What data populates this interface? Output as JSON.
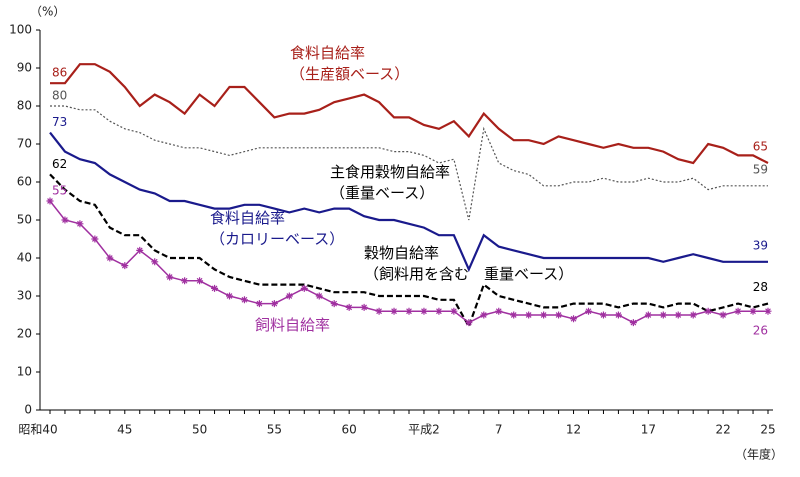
{
  "chart_data": {
    "type": "line",
    "y_unit_label": "（%）",
    "x_unit_label": "（年度）",
    "categories": [
      "昭和40",
      null,
      null,
      null,
      null,
      "45",
      null,
      null,
      null,
      null,
      "50",
      null,
      null,
      null,
      null,
      "55",
      null,
      null,
      null,
      null,
      "60",
      null,
      null,
      null,
      null,
      "平成2",
      null,
      null,
      null,
      null,
      "7",
      null,
      null,
      null,
      null,
      "12",
      null,
      null,
      null,
      null,
      "17",
      null,
      null,
      null,
      null,
      "22",
      null,
      null,
      "25"
    ],
    "ylim": [
      0,
      100
    ],
    "yticks": [
      0,
      10,
      20,
      30,
      40,
      50,
      60,
      70,
      80,
      90,
      100
    ],
    "series": [
      {
        "name": "食料自給率\n（生産額ベース）",
        "color": "#a8201a",
        "style": "solid",
        "values": [
          86,
          86,
          91,
          91,
          89,
          85,
          80,
          83,
          81,
          78,
          83,
          80,
          85,
          85,
          81,
          77,
          78,
          78,
          79,
          81,
          82,
          83,
          81,
          77,
          77,
          75,
          74,
          76,
          72,
          78,
          74,
          71,
          71,
          70,
          72,
          71,
          70,
          69,
          70,
          69,
          69,
          68,
          66,
          65,
          70,
          69,
          67,
          67,
          65
        ]
      },
      {
        "name": "主食用穀物自給率\n（重量ベース）",
        "color": "#555555",
        "style": "dotted",
        "values": [
          80,
          80,
          79,
          79,
          76,
          74,
          73,
          71,
          70,
          69,
          69,
          68,
          67,
          68,
          69,
          69,
          69,
          69,
          69,
          69,
          69,
          69,
          69,
          68,
          68,
          67,
          65,
          66,
          50,
          74,
          65,
          63,
          62,
          59,
          59,
          60,
          60,
          61,
          60,
          60,
          61,
          60,
          60,
          61,
          58,
          59,
          59,
          59,
          59
        ]
      },
      {
        "name": "食料自給率\n（カロリーベース）",
        "color": "#1a1a8c",
        "style": "solid",
        "values": [
          73,
          68,
          66,
          65,
          62,
          60,
          58,
          57,
          55,
          55,
          54,
          53,
          53,
          54,
          54,
          53,
          52,
          53,
          52,
          53,
          53,
          51,
          50,
          50,
          49,
          48,
          46,
          46,
          37,
          46,
          43,
          42,
          41,
          40,
          40,
          40,
          40,
          40,
          40,
          40,
          40,
          39,
          40,
          41,
          40,
          39,
          39,
          39,
          39
        ]
      },
      {
        "name": "穀物自給率\n（飼料用を含む　重量ベース）",
        "color": "#000000",
        "style": "dashed",
        "values": [
          62,
          58,
          55,
          54,
          48,
          46,
          46,
          42,
          40,
          40,
          40,
          37,
          35,
          34,
          33,
          33,
          33,
          33,
          32,
          31,
          31,
          31,
          30,
          30,
          30,
          30,
          29,
          29,
          22,
          33,
          30,
          29,
          28,
          27,
          27,
          28,
          28,
          28,
          27,
          28,
          28,
          27,
          28,
          28,
          26,
          27,
          28,
          27,
          28
        ]
      },
      {
        "name": "飼料自給率",
        "color": "#a030a0",
        "style": "star",
        "values": [
          55,
          50,
          49,
          45,
          40,
          38,
          42,
          39,
          35,
          34,
          34,
          32,
          30,
          29,
          28,
          28,
          30,
          32,
          30,
          28,
          27,
          27,
          26,
          26,
          26,
          26,
          26,
          26,
          23,
          25,
          26,
          25,
          25,
          25,
          25,
          24,
          26,
          25,
          25,
          23,
          25,
          25,
          25,
          25,
          26,
          25,
          26,
          26,
          26
        ]
      }
    ]
  }
}
